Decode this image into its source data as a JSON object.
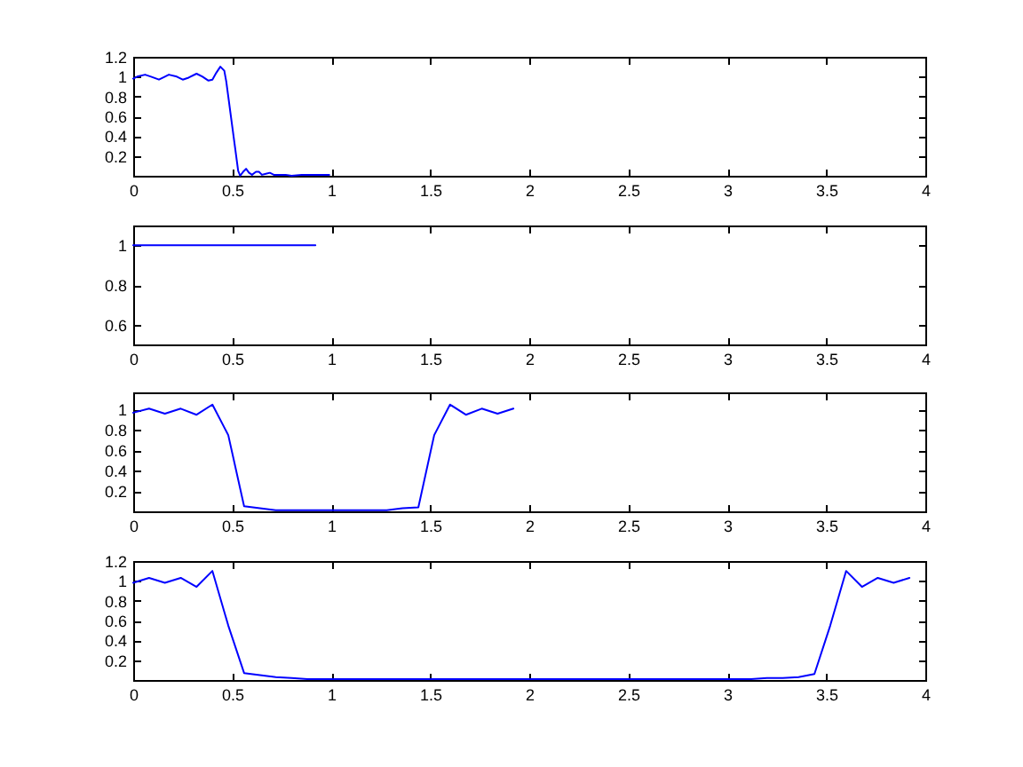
{
  "chart_data": [
    {
      "type": "line",
      "x": [
        0,
        0.02,
        0.06,
        0.09,
        0.13,
        0.16,
        0.18,
        0.22,
        0.25,
        0.28,
        0.32,
        0.35,
        0.38,
        0.4,
        0.42,
        0.44,
        0.46,
        0.47,
        0.48,
        0.5,
        0.52,
        0.53,
        0.54,
        0.555,
        0.57,
        0.585,
        0.6,
        0.62,
        0.635,
        0.65,
        0.67,
        0.69,
        0.71,
        0.74,
        0.77,
        0.8,
        0.85,
        0.9,
        0.95,
        0.99
      ],
      "values": [
        0.98,
        1,
        1.02,
        1,
        0.97,
        1,
        1.02,
        1,
        0.97,
        0.99,
        1.03,
        1,
        0.96,
        0.97,
        1.04,
        1.1,
        1.06,
        0.95,
        0.8,
        0.5,
        0.2,
        0.05,
        0,
        0.04,
        0.07,
        0.03,
        0.01,
        0.04,
        0.04,
        0.01,
        0.02,
        0.03,
        0.01,
        0.01,
        0.01,
        0,
        0.01,
        0.01,
        0.01,
        0.01
      ],
      "color": "#0000ff",
      "xlim": [
        0,
        4
      ],
      "ylim": [
        0,
        1.2
      ],
      "xticks": [
        0,
        0.5,
        1,
        1.5,
        2,
        2.5,
        3,
        3.5,
        4
      ],
      "yticks": [
        0.2,
        0.4,
        0.6,
        0.8,
        1,
        1.2
      ]
    },
    {
      "type": "line",
      "x": [
        0,
        0.92
      ],
      "values": [
        1,
        1
      ],
      "color": "#0000ff",
      "xlim": [
        0,
        4
      ],
      "ylim": [
        0.5,
        1.1
      ],
      "xticks": [
        0,
        0.5,
        1,
        1.5,
        2,
        2.5,
        3,
        3.5,
        4
      ],
      "yticks": [
        0.6,
        0.8,
        1
      ]
    },
    {
      "type": "line",
      "x": [
        0,
        0.08,
        0.16,
        0.24,
        0.32,
        0.4,
        0.48,
        0.56,
        0.64,
        0.72,
        0.8,
        0.88,
        0.96,
        1.04,
        1.12,
        1.2,
        1.28,
        1.36,
        1.44,
        1.52,
        1.6,
        1.68,
        1.76,
        1.84,
        1.92
      ],
      "values": [
        0.97,
        1.01,
        0.96,
        1.01,
        0.95,
        1.05,
        0.75,
        0.05,
        0.03,
        0.01,
        0.01,
        0.01,
        0.01,
        0.01,
        0.01,
        0.01,
        0.01,
        0.03,
        0.04,
        0.75,
        1.05,
        0.95,
        1.01,
        0.96,
        1.01
      ],
      "color": "#0000ff",
      "xlim": [
        0,
        4
      ],
      "ylim": [
        0,
        1.17
      ],
      "xticks": [
        0,
        0.5,
        1,
        1.5,
        2,
        2.5,
        3,
        3.5,
        4
      ],
      "yticks": [
        0.2,
        0.4,
        0.6,
        0.8,
        1
      ]
    },
    {
      "type": "line",
      "x": [
        0,
        0.08,
        0.16,
        0.24,
        0.32,
        0.4,
        0.48,
        0.56,
        0.64,
        0.72,
        0.8,
        0.88,
        0.96,
        1.04,
        1.12,
        1.2,
        1.28,
        1.36,
        1.44,
        1.52,
        1.6,
        1.68,
        1.76,
        1.84,
        1.92,
        2,
        2.08,
        2.16,
        2.24,
        2.32,
        2.4,
        2.48,
        2.56,
        2.64,
        2.72,
        2.8,
        2.88,
        2.96,
        3.04,
        3.12,
        3.2,
        3.28,
        3.36,
        3.44,
        3.52,
        3.6,
        3.68,
        3.76,
        3.84,
        3.92
      ],
      "values": [
        0.98,
        1.03,
        0.98,
        1.03,
        0.94,
        1.1,
        0.55,
        0.07,
        0.05,
        0.03,
        0.02,
        0.01,
        0.01,
        0.01,
        0.01,
        0.01,
        0.01,
        0.01,
        0.01,
        0.01,
        0.01,
        0.01,
        0.01,
        0.01,
        0.01,
        0.01,
        0.01,
        0.01,
        0.01,
        0.01,
        0.01,
        0.01,
        0.01,
        0.01,
        0.01,
        0.01,
        0.01,
        0.01,
        0.01,
        0.01,
        0.02,
        0.02,
        0.03,
        0.06,
        0.55,
        1.1,
        0.94,
        1.03,
        0.98,
        1.03
      ],
      "color": "#0000ff",
      "xlim": [
        0,
        4
      ],
      "ylim": [
        0,
        1.2
      ],
      "xticks": [
        0,
        0.5,
        1,
        1.5,
        2,
        2.5,
        3,
        3.5,
        4
      ],
      "yticks": [
        0.2,
        0.4,
        0.6,
        0.8,
        1,
        1.2
      ]
    }
  ]
}
